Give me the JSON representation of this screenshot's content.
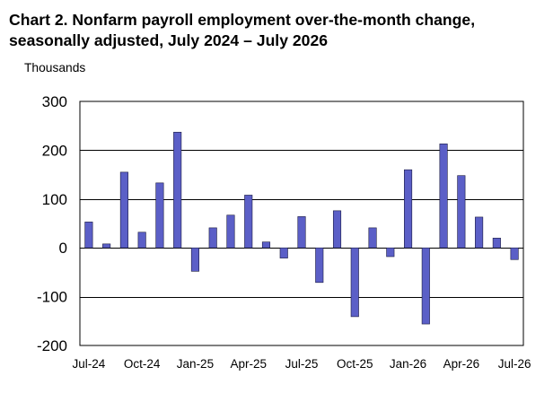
{
  "title_line1": "Chart 2. Nonfarm payroll employment over-the-month change,",
  "title_line2": "seasonally adjusted, July 2024 – July 2026",
  "units": "Thousands",
  "colors": {
    "bar_fill": "#5B5FC7",
    "bar_stroke": "#1a1a40",
    "gridline": "#000000",
    "plot_border": "#000000"
  },
  "chart_data": {
    "type": "bar",
    "title": "Chart 2. Nonfarm payroll employment over-the-month change, seasonally adjusted, July 2024 – July 2026",
    "ylabel": "Thousands",
    "xlabel": "",
    "ylim": [
      -200,
      300
    ],
    "yticks": [
      -200,
      -100,
      0,
      100,
      200,
      300
    ],
    "grid": true,
    "legend": "none",
    "x_tick_labels": [
      "Jul-24",
      "Oct-24",
      "Jan-25",
      "Apr-25",
      "Jul-25",
      "Oct-25",
      "Jan-26",
      "Apr-26",
      "Jul-26"
    ],
    "x_tick_every": 3,
    "categories": [
      "Jul-24",
      "Aug-24",
      "Sep-24",
      "Oct-24",
      "Nov-24",
      "Dec-24",
      "Jan-25",
      "Feb-25",
      "Mar-25",
      "Apr-25",
      "May-25",
      "Jun-25",
      "Jul-25",
      "Aug-25",
      "Sep-25",
      "Oct-25",
      "Nov-25",
      "Dec-25",
      "Jan-26",
      "Feb-26",
      "Mar-26",
      "Apr-26",
      "May-26",
      "Jun-26",
      "Jul-26"
    ],
    "values": [
      53,
      8,
      155,
      32,
      133,
      237,
      -48,
      41,
      67,
      108,
      12,
      -21,
      64,
      -71,
      76,
      -141,
      41,
      -18,
      160,
      -156,
      213,
      148,
      63,
      20,
      -24
    ]
  }
}
